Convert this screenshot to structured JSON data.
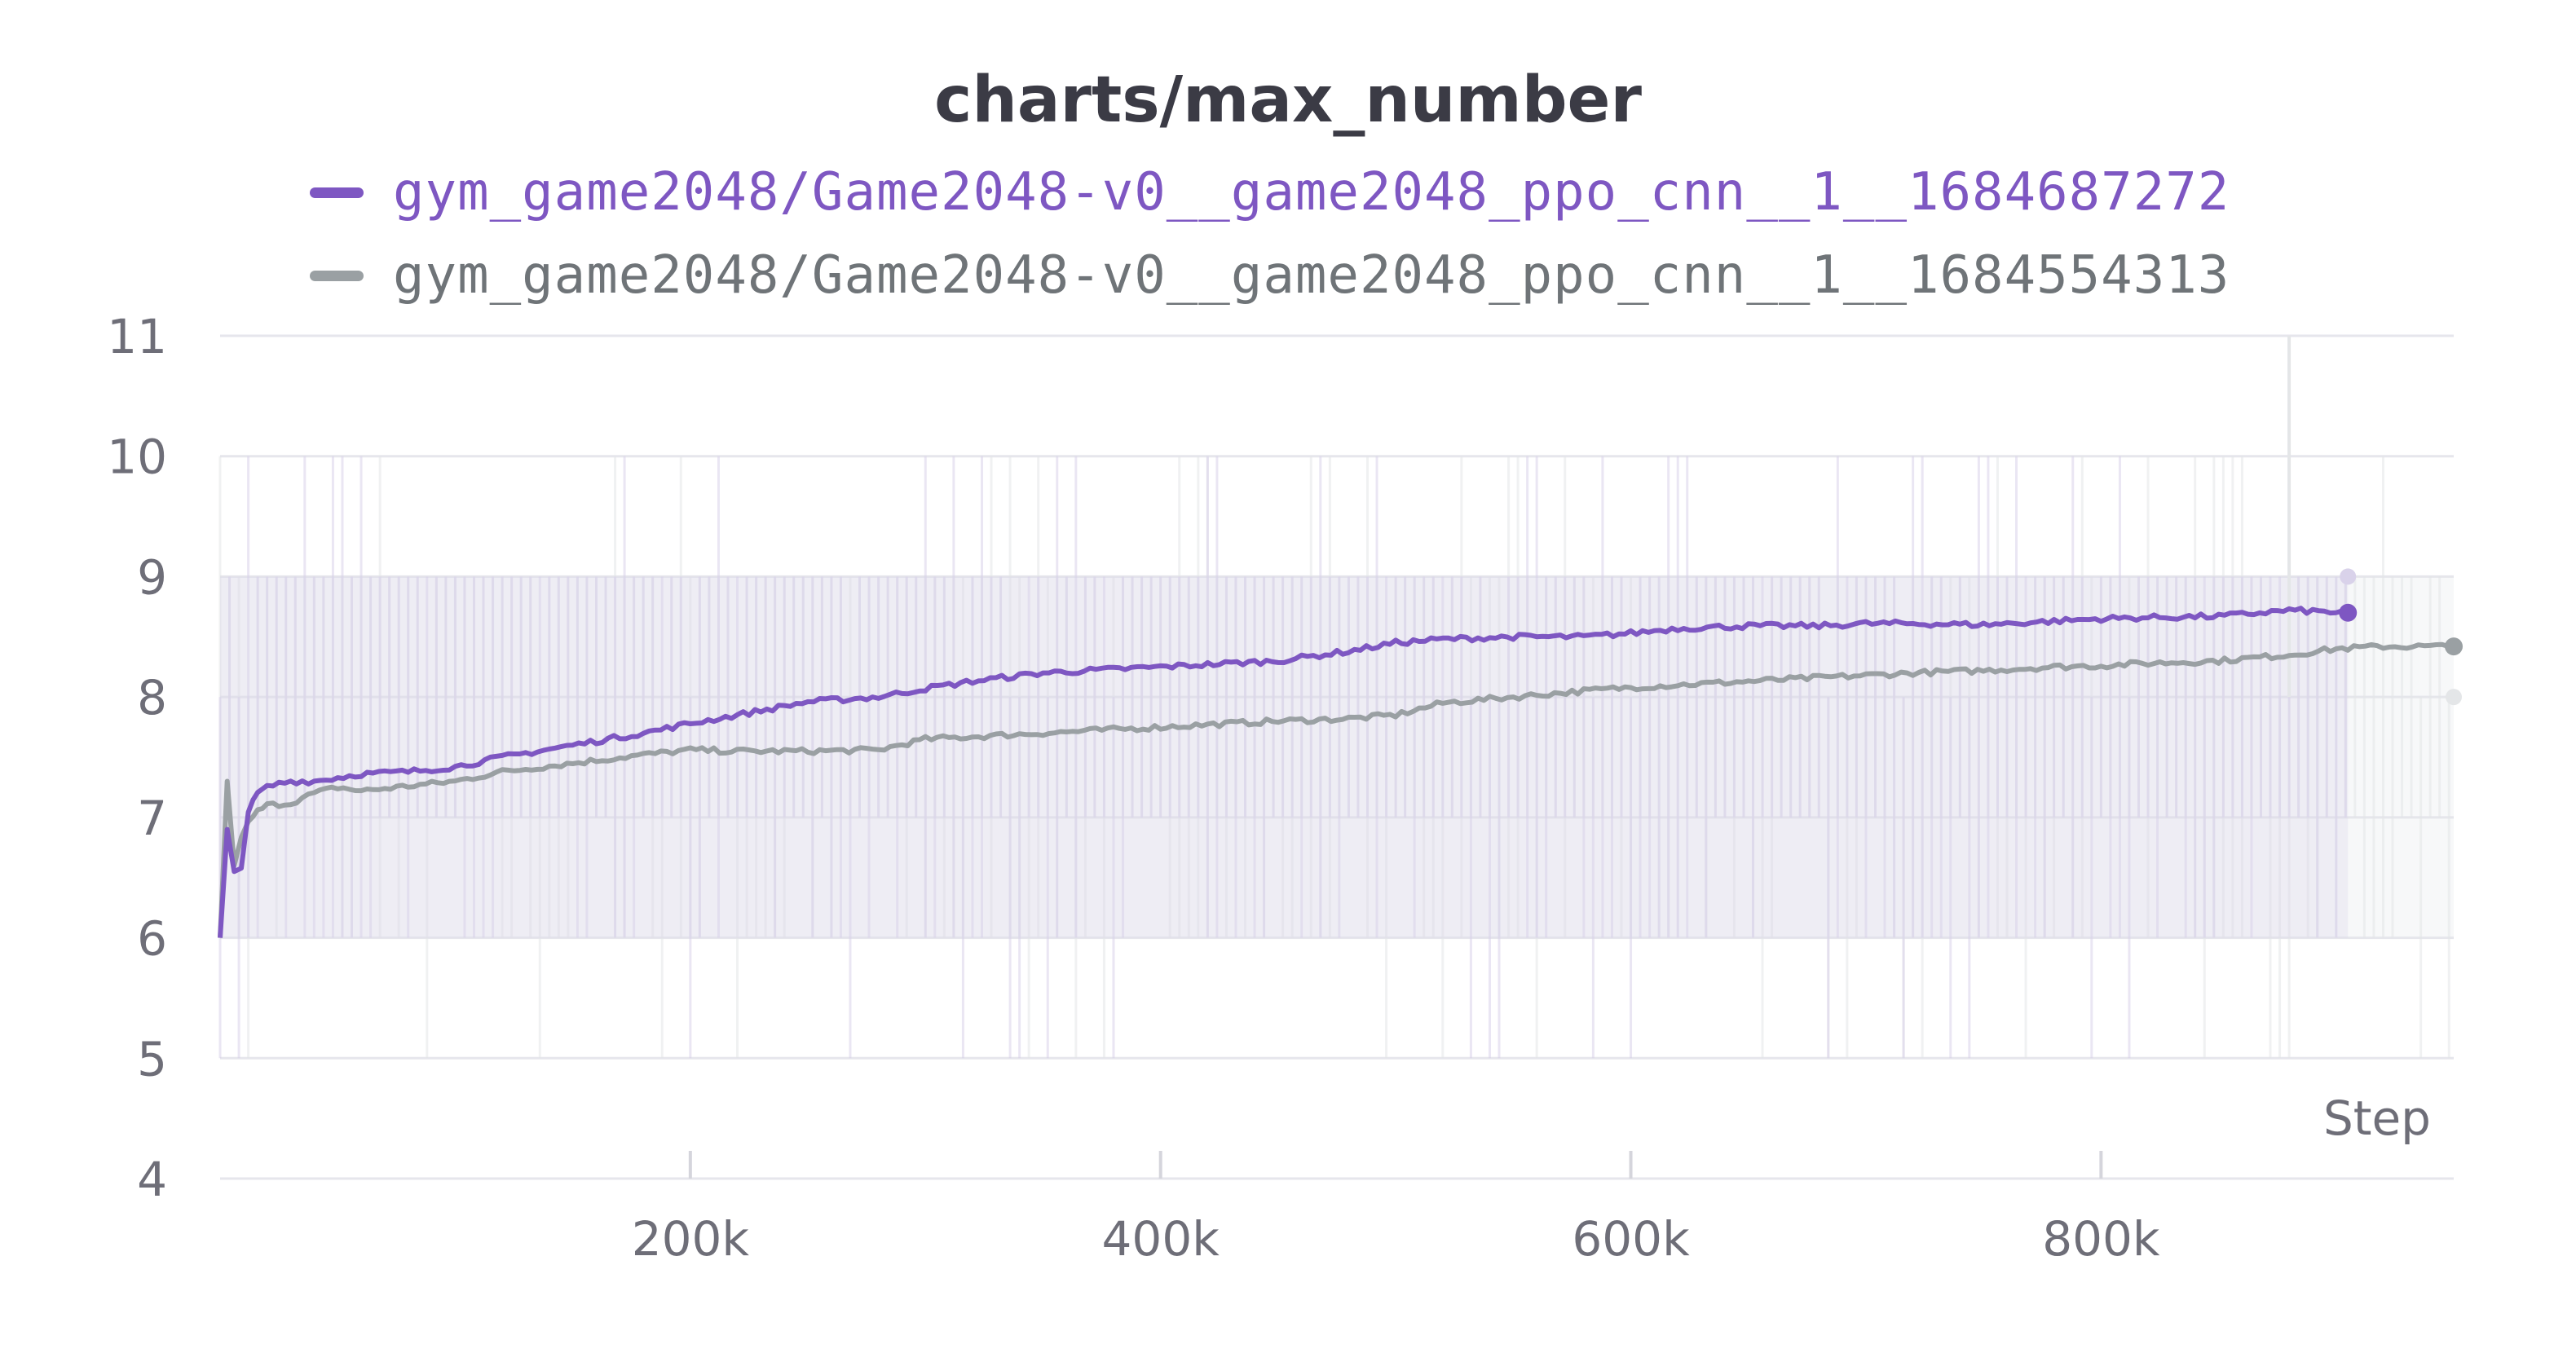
{
  "chart_data": {
    "type": "line",
    "title": "charts/max_number",
    "xlabel": "Step",
    "ylabel": "",
    "xlim": [
      0,
      950000
    ],
    "ylim": [
      4,
      11
    ],
    "x_ticks": [
      200000,
      400000,
      600000,
      800000
    ],
    "x_tick_labels": [
      "200k",
      "400k",
      "600k",
      "800k"
    ],
    "y_ticks": [
      4,
      5,
      6,
      7,
      8,
      9,
      10,
      11
    ],
    "y_tick_labels": [
      "4",
      "5",
      "6",
      "7",
      "8",
      "9",
      "10",
      "11"
    ],
    "grid": true,
    "legend_position": "top",
    "series": [
      {
        "name": "gym_game2048/Game2048-v0__game2048_ppo_cnn__1__1684687272",
        "color": "#7e57c2",
        "raw_color": "#d9d2ea",
        "smoothed": true,
        "x": [
          0,
          3000,
          6000,
          9000,
          12000,
          16000,
          20000,
          25000,
          30000,
          40000,
          50000,
          60000,
          80000,
          100000,
          120000,
          150000,
          180000,
          200000,
          220000,
          250000,
          280000,
          300000,
          320000,
          350000,
          380000,
          400000,
          420000,
          450000,
          480000,
          500000,
          520000,
          550000,
          580000,
          600000,
          620000,
          650000,
          680000,
          700000,
          720000,
          750000,
          780000,
          800000,
          820000,
          850000,
          880000,
          905000
        ],
        "values": [
          6.0,
          6.9,
          6.55,
          6.6,
          7.05,
          7.2,
          7.25,
          7.28,
          7.3,
          7.3,
          7.33,
          7.36,
          7.38,
          7.42,
          7.5,
          7.6,
          7.7,
          7.78,
          7.85,
          7.96,
          8.0,
          8.07,
          8.13,
          8.2,
          8.23,
          8.25,
          8.27,
          8.3,
          8.38,
          8.45,
          8.48,
          8.5,
          8.5,
          8.53,
          8.57,
          8.59,
          8.59,
          8.61,
          8.61,
          8.6,
          8.63,
          8.65,
          8.66,
          8.67,
          8.72,
          8.7
        ]
      },
      {
        "name": "gym_game2048/Game2048-v0__game2048_ppo_cnn__1__1684554313",
        "color": "#9aa0a3",
        "raw_color": "#e4e6e8",
        "smoothed": true,
        "x": [
          0,
          3000,
          6000,
          9000,
          12000,
          16000,
          20000,
          30000,
          40000,
          50000,
          60000,
          80000,
          100000,
          120000,
          150000,
          180000,
          200000,
          220000,
          250000,
          280000,
          300000,
          320000,
          350000,
          380000,
          400000,
          420000,
          450000,
          480000,
          500000,
          520000,
          550000,
          580000,
          600000,
          620000,
          650000,
          680000,
          700000,
          720000,
          750000,
          780000,
          800000,
          820000,
          850000,
          880000,
          900000,
          920000,
          950000
        ],
        "values": [
          6.0,
          7.3,
          6.6,
          6.85,
          6.95,
          7.05,
          7.1,
          7.12,
          7.2,
          7.25,
          7.22,
          7.26,
          7.3,
          7.38,
          7.45,
          7.52,
          7.56,
          7.55,
          7.55,
          7.56,
          7.65,
          7.67,
          7.7,
          7.73,
          7.75,
          7.77,
          7.8,
          7.82,
          7.85,
          7.95,
          8.0,
          8.05,
          8.08,
          8.1,
          8.13,
          8.16,
          8.18,
          8.2,
          8.22,
          8.25,
          8.26,
          8.28,
          8.3,
          8.35,
          8.4,
          8.42,
          8.42
        ]
      }
    ],
    "raw_band": {
      "typical_min": 6,
      "typical_max": 9,
      "spike_max": 11,
      "spike_min": 5
    }
  }
}
